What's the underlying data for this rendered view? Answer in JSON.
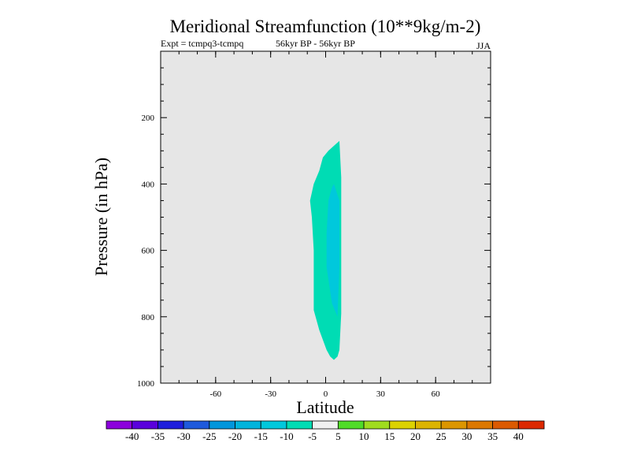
{
  "chart_data": {
    "type": "contour",
    "title": "Meridional Streamfunction (10**9kg/m-2)",
    "subtitle_left": "Expt = tcmpq3-tcmpq",
    "subtitle_center": "56kyr BP - 56kyr BP",
    "subtitle_right": "JJA",
    "xlabel": "Latitude",
    "ylabel": "Pressure (in hPa)",
    "xlim": [
      -90,
      90
    ],
    "ylim": [
      1000,
      0
    ],
    "x_ticks": [
      -60,
      -30,
      0,
      30,
      60
    ],
    "y_ticks": [
      200,
      400,
      600,
      800,
      1000
    ],
    "background_color": "#e6e6e6",
    "contours": [
      {
        "level": "-10 to -5",
        "color": "#00dcb4",
        "outline": [
          [
            7.5,
            270
          ],
          [
            8.5,
            380
          ],
          [
            8.5,
            500
          ],
          [
            8.5,
            650
          ],
          [
            8.5,
            790
          ],
          [
            7.5,
            900
          ],
          [
            6.5,
            920
          ],
          [
            4.5,
            930
          ],
          [
            2.5,
            920
          ],
          [
            0.5,
            900
          ],
          [
            -3.5,
            840
          ],
          [
            -6.5,
            780
          ],
          [
            -6.5,
            700
          ],
          [
            -6.5,
            600
          ],
          [
            -7.5,
            500
          ],
          [
            -8.5,
            450
          ],
          [
            -6.5,
            400
          ],
          [
            -3.5,
            360
          ],
          [
            -1.5,
            320
          ],
          [
            1.5,
            300
          ],
          [
            5.5,
            280
          ]
        ]
      },
      {
        "level": "-15 to -10",
        "color": "#00c8dc",
        "outline": [
          [
            4.5,
            400
          ],
          [
            7.5,
            450
          ],
          [
            7.5,
            550
          ],
          [
            7.5,
            650
          ],
          [
            6.5,
            800
          ],
          [
            3.5,
            760
          ],
          [
            0.5,
            650
          ],
          [
            0.5,
            550
          ],
          [
            1.5,
            450
          ],
          [
            3.5,
            410
          ]
        ]
      }
    ],
    "colorbar": {
      "labels": [
        "-40",
        "-35",
        "-30",
        "-25",
        "-20",
        "-15",
        "-10",
        "-5",
        "5",
        "10",
        "15",
        "20",
        "25",
        "30",
        "35",
        "40"
      ],
      "colors": [
        "#8c00dc",
        "#5a00dc",
        "#1e1edc",
        "#1e5adc",
        "#0096dc",
        "#00b4dc",
        "#00c8dc",
        "#00dcb4",
        "#f0f0f0",
        "#50dc28",
        "#a0dc1e",
        "#dcd200",
        "#dcb400",
        "#dc9600",
        "#dc7800",
        "#dc5a00",
        "#dc2800"
      ]
    }
  }
}
